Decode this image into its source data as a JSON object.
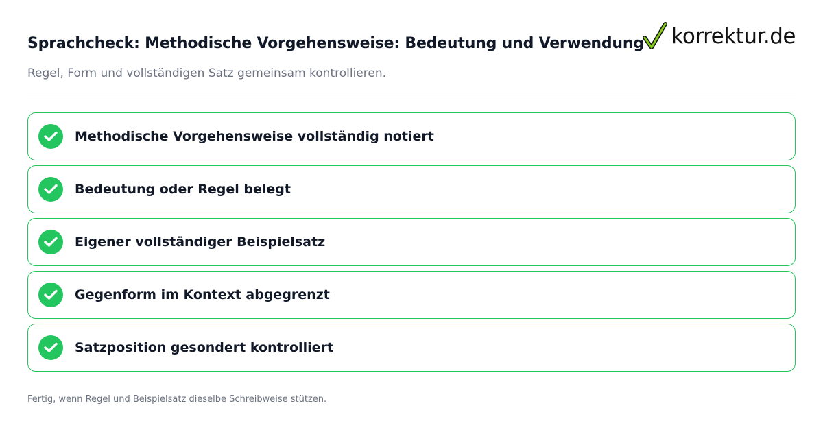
{
  "header": {
    "title": "Sprachcheck: Methodische Vorgehensweise: Bedeutung und Verwendung",
    "subtitle": "Regel, Form und vollständigen Satz gemeinsam kontrollieren."
  },
  "logo": {
    "text": "korrektur.de",
    "icon": "checkmark-icon",
    "check_color": "#84cc16"
  },
  "checklist": {
    "items": [
      {
        "label": "Methodische Vorgehensweise vollständig notiert",
        "icon": "check-circle-icon",
        "checked": true
      },
      {
        "label": "Bedeutung oder Regel belegt",
        "icon": "check-circle-icon",
        "checked": true
      },
      {
        "label": "Eigener vollständiger Beispielsatz",
        "icon": "check-circle-icon",
        "checked": true
      },
      {
        "label": "Gegenform im Kontext abgegrenzt",
        "icon": "check-circle-icon",
        "checked": true
      },
      {
        "label": "Satzposition gesondert kontrolliert",
        "icon": "check-circle-icon",
        "checked": true
      }
    ]
  },
  "footer": {
    "text": "Fertig, wenn Regel und Beispielsatz dieselbe Schreibweise stützen."
  },
  "colors": {
    "accent": "#22c55e",
    "title": "#111827",
    "muted": "#6b7280",
    "divider": "#e5e7eb"
  }
}
